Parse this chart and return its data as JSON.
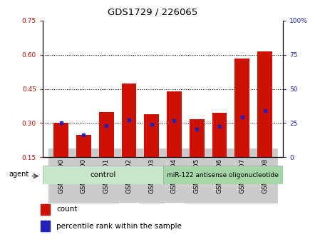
{
  "title": "GDS1729 / 226065",
  "categories": [
    "GSM83090",
    "GSM83100",
    "GSM83101",
    "GSM83102",
    "GSM83103",
    "GSM83104",
    "GSM83105",
    "GSM83106",
    "GSM83107",
    "GSM83108"
  ],
  "red_values": [
    0.3,
    0.248,
    0.35,
    0.475,
    0.34,
    0.44,
    0.318,
    0.345,
    0.585,
    0.615
  ],
  "blue_values": [
    0.3,
    0.248,
    0.29,
    0.315,
    0.295,
    0.31,
    0.272,
    0.285,
    0.325,
    0.355
  ],
  "ylim_left": [
    0.15,
    0.75
  ],
  "ylim_right": [
    0,
    100
  ],
  "yticks_left": [
    0.15,
    0.3,
    0.45,
    0.6,
    0.75
  ],
  "yticks_right": [
    0,
    25,
    50,
    75,
    100
  ],
  "ytick_labels_right": [
    "0",
    "25",
    "50",
    "75",
    "100%"
  ],
  "grid_vals": [
    0.3,
    0.45,
    0.6
  ],
  "bar_color": "#cc1100",
  "blue_color": "#2222bb",
  "bar_width": 0.65,
  "control_label": "control",
  "treatment_label": "miR-122 antisense oligonucleotide",
  "agent_label": "agent",
  "legend_count": "count",
  "legend_pct": "percentile rank within the sample",
  "title_fontsize": 9.5,
  "tick_fontsize": 6.5,
  "bottom_bg_ctrl": "#c8e6c9",
  "bottom_bg_treat": "#a5d6a7",
  "tick_bg": "#cccccc",
  "n_control": 5,
  "n_treatment": 5
}
